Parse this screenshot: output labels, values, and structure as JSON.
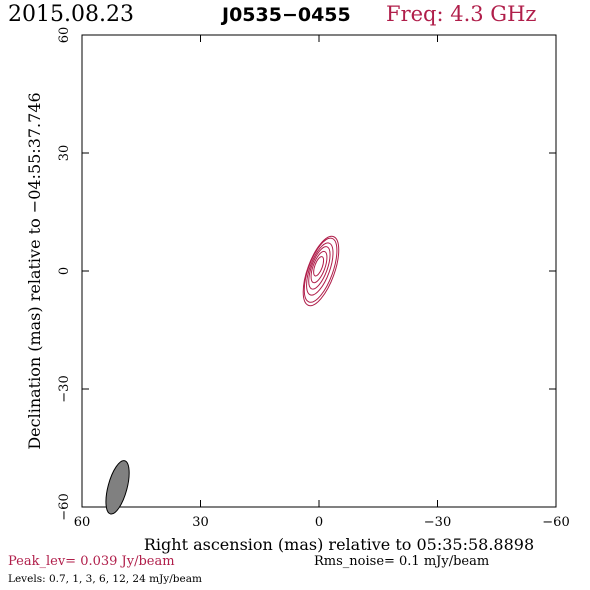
{
  "header": {
    "date": "2015.08.23",
    "source": "J0535−0455",
    "freq": "Freq: 4.3 GHz"
  },
  "colors": {
    "contour": "#b01e4a",
    "beam_fill": "#808080",
    "text_accent": "#b01e4a"
  },
  "footer": {
    "peak": "Peak_lev=  0.039 Jy/beam",
    "rms": "Rms_noise=  0.1 mJy/beam",
    "levels": "Levels: 0.7,    1,    3,    6,   12,   24 mJy/beam"
  },
  "chart_data": {
    "type": "contour",
    "xlabel": "Right ascension (mas) relative to 05:35:58.8898",
    "ylabel": "Declination (mas) relative to −04:55:37.746",
    "xlim": [
      60,
      -60
    ],
    "ylim": [
      -60,
      60
    ],
    "xticks": [
      60,
      30,
      0,
      -30,
      -60
    ],
    "yticks": [
      60,
      30,
      0,
      -30,
      -60
    ],
    "xtick_labels": [
      "60",
      "30",
      "0",
      "−30",
      "−60"
    ],
    "ytick_labels": [
      "60",
      "30",
      "0",
      "−30",
      "−60"
    ],
    "contour_levels_mJy": [
      0.7,
      1,
      3,
      6,
      12,
      24
    ],
    "source_center": [
      -0.5,
      0
    ],
    "source_contours": [
      {
        "level": 0.7,
        "semi_major": 9.3,
        "semi_minor": 3.4,
        "pa_deg": 20,
        "dx": 0,
        "dy": 0
      },
      {
        "level": 1,
        "semi_major": 8.6,
        "semi_minor": 3.1,
        "pa_deg": 20,
        "dx": 0.1,
        "dy": 0.2
      },
      {
        "level": 3,
        "semi_major": 7.0,
        "semi_minor": 2.5,
        "pa_deg": 20,
        "dx": 0.3,
        "dy": 0.5
      },
      {
        "level": 6,
        "semi_major": 5.7,
        "semi_minor": 2.0,
        "pa_deg": 20,
        "dx": 0.4,
        "dy": 0.8
      },
      {
        "level": 12,
        "semi_major": 4.2,
        "semi_minor": 1.5,
        "pa_deg": 20,
        "dx": 0.5,
        "dy": 1.0
      },
      {
        "level": 24,
        "semi_major": 2.6,
        "semi_minor": 0.95,
        "pa_deg": 20,
        "dx": 0.6,
        "dy": 1.2
      }
    ],
    "beam": {
      "x": 51,
      "y": -55,
      "major": 7.0,
      "minor": 2.4,
      "pa_deg": 15
    }
  }
}
